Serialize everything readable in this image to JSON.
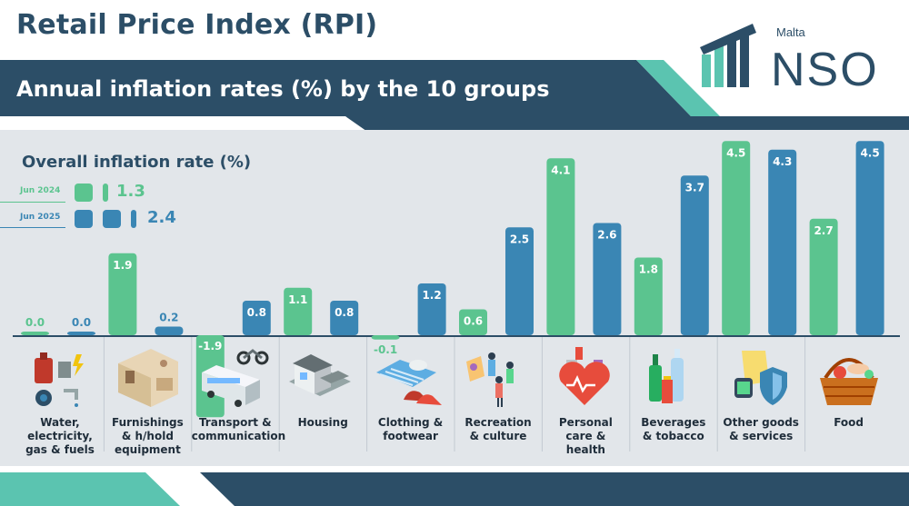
{
  "header": {
    "title": "Retail Price Index (RPI)",
    "subtitle": "Annual inflation rates (%) by the 10 groups",
    "logo_small": "Malta",
    "logo_big": "NSO"
  },
  "overall": {
    "title": "Overall inflation rate (%)",
    "periods": [
      {
        "label": "Jun 2024",
        "value": "1.3",
        "color": "#5bc48f"
      },
      {
        "label": "Jun 2025",
        "value": "2.4",
        "color": "#3a86b4"
      }
    ]
  },
  "colors": {
    "jun2024": "#5bc48f",
    "jun2025": "#3a86b4",
    "navy": "#2c4e67",
    "teal": "#5bc4b0",
    "panel": "#e2e6ea"
  },
  "chart_data": {
    "type": "bar",
    "title": "Annual inflation rates (%) by the 10 groups",
    "categories": [
      "Water, electricity, gas & fuels",
      "Furnishings & h/hold equipment",
      "Transport & communication",
      "Housing",
      "Clothing & footwear",
      "Recreation & culture",
      "Personal care & health",
      "Beverages & tobacco",
      "Other goods & services",
      "Food"
    ],
    "category_lines": [
      [
        "Water,",
        "electricity,",
        "gas & fuels"
      ],
      [
        "Furnishings",
        "& h/hold",
        "equipment"
      ],
      [
        "Transport &",
        "communication"
      ],
      [
        "Housing"
      ],
      [
        "Clothing &",
        "footwear"
      ],
      [
        "Recreation",
        "& culture"
      ],
      [
        "Personal",
        "care &",
        "health"
      ],
      [
        "Beverages",
        "& tobacco"
      ],
      [
        "Other goods",
        "& services"
      ],
      [
        "Food"
      ]
    ],
    "series": [
      {
        "name": "Jun 2024",
        "values": [
          0.0,
          1.9,
          -1.9,
          1.1,
          -0.1,
          0.6,
          4.1,
          1.8,
          4.5,
          2.7
        ]
      },
      {
        "name": "Jun 2025",
        "values": [
          0.0,
          0.2,
          0.8,
          0.8,
          1.2,
          2.5,
          2.6,
          3.7,
          4.3,
          4.5
        ]
      }
    ],
    "value_labels": [
      [
        "0.0",
        "1.9",
        "-1.9",
        "1.1",
        "-0.1",
        "0.6",
        "4.1",
        "1.8",
        "4.5",
        "2.7"
      ],
      [
        "0.0",
        "0.2",
        "0.8",
        "0.8",
        "1.2",
        "2.5",
        "2.6",
        "3.7",
        "4.3",
        "4.5"
      ]
    ],
    "icons": [
      "utilities-icon",
      "furniture-icon",
      "bus-motorbike-icon",
      "house-icon",
      "shoes-icon",
      "people-culture-icon",
      "health-heart-icon",
      "bottles-icon",
      "shield-watch-icon",
      "picnic-basket-icon"
    ],
    "ylim": [
      -2,
      4.5
    ],
    "grid": false,
    "legend": "top-left"
  }
}
